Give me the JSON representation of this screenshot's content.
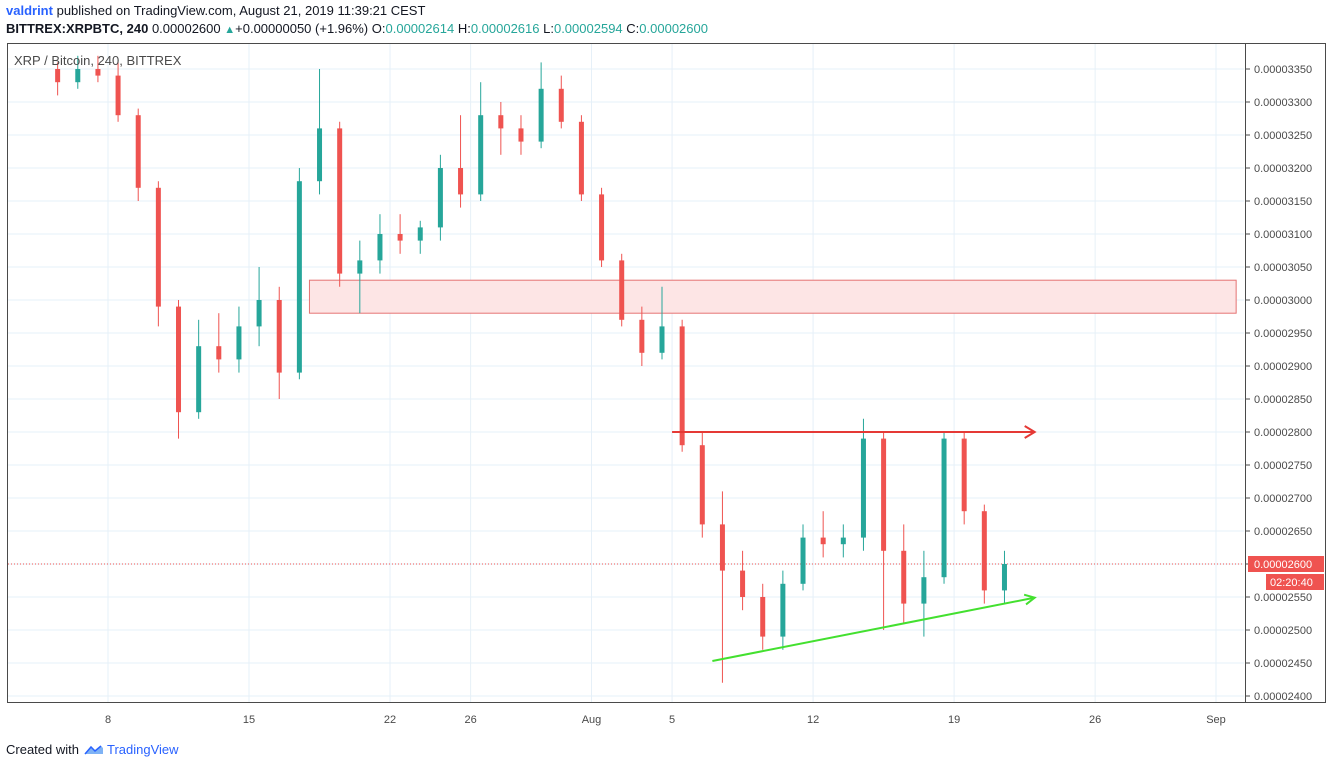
{
  "header": {
    "author": "valdrint",
    "published": "published on TradingView.com, August 21, 2019 11:39:21 CEST",
    "symbol": "BITTREX:XRPBTC, 240",
    "last": "0.00002600",
    "arrow": "▲",
    "change": "+0.00000050 (+1.96%)",
    "o_label": "O:",
    "o_value": "0.00002614",
    "h_label": "H:",
    "h_value": "0.00002616",
    "l_label": "L:",
    "l_value": "0.00002594",
    "c_label": "C:",
    "c_value": "0.00002600"
  },
  "watermark": "XRP / Bitcoin, 240, BITTREX",
  "footer": {
    "created_with": "Created with",
    "brand": "TradingView"
  },
  "chart_data": {
    "type": "candlestick",
    "symbol": "XRPBTC",
    "exchange": "BITTREX",
    "timeframe": "240",
    "x_tick_labels": [
      "8",
      "15",
      "22",
      "26",
      "Aug",
      "5",
      "12",
      "19",
      "26",
      "Sep"
    ],
    "x_tick_dates": [
      "2019-07-08",
      "2019-07-15",
      "2019-07-22",
      "2019-07-26",
      "2019-08-01",
      "2019-08-05",
      "2019-08-12",
      "2019-08-19",
      "2019-08-26",
      "2019-09-01"
    ],
    "y_tick_labels": [
      "0.00003350",
      "0.00003300",
      "0.00003250",
      "0.00003200",
      "0.00003150",
      "0.00003100",
      "0.00003050",
      "0.00003000",
      "0.00002950",
      "0.00002900",
      "0.00002850",
      "0.00002800",
      "0.00002750",
      "0.00002700",
      "0.00002650",
      "0.00002600",
      "0.00002550",
      "0.00002500",
      "0.00002450",
      "0.00002400"
    ],
    "ylim": [
      2.4e-05,
      3.37e-05
    ],
    "current_price": "0.00002600",
    "countdown": "02:20:40",
    "colors": {
      "up": "#26a69a",
      "down": "#ef5350",
      "grid": "#e6f0f8",
      "resistance_zone": "#fde5e5",
      "resistance_line": "#e53935",
      "support_line": "#43e02f",
      "price_line": "#ef5350"
    },
    "candles": [
      {
        "t": "2019-07-05",
        "o": 3.35e-05,
        "h": 3.36e-05,
        "l": 3.31e-05,
        "c": 3.33e-05
      },
      {
        "t": "2019-07-06",
        "o": 3.33e-05,
        "h": 3.37e-05,
        "l": 3.32e-05,
        "c": 3.35e-05
      },
      {
        "t": "2019-07-07",
        "o": 3.35e-05,
        "h": 3.37e-05,
        "l": 3.33e-05,
        "c": 3.34e-05
      },
      {
        "t": "2019-07-08",
        "o": 3.34e-05,
        "h": 3.36e-05,
        "l": 3.27e-05,
        "c": 3.28e-05
      },
      {
        "t": "2019-07-09",
        "o": 3.28e-05,
        "h": 3.29e-05,
        "l": 3.15e-05,
        "c": 3.17e-05
      },
      {
        "t": "2019-07-10",
        "o": 3.17e-05,
        "h": 3.18e-05,
        "l": 2.96e-05,
        "c": 2.99e-05
      },
      {
        "t": "2019-07-11",
        "o": 2.99e-05,
        "h": 3e-05,
        "l": 2.79e-05,
        "c": 2.83e-05
      },
      {
        "t": "2019-07-12",
        "o": 2.83e-05,
        "h": 2.97e-05,
        "l": 2.82e-05,
        "c": 2.93e-05
      },
      {
        "t": "2019-07-13",
        "o": 2.93e-05,
        "h": 2.98e-05,
        "l": 2.89e-05,
        "c": 2.91e-05
      },
      {
        "t": "2019-07-14",
        "o": 2.91e-05,
        "h": 2.99e-05,
        "l": 2.89e-05,
        "c": 2.96e-05
      },
      {
        "t": "2019-07-15",
        "o": 2.96e-05,
        "h": 3.05e-05,
        "l": 2.93e-05,
        "c": 3e-05
      },
      {
        "t": "2019-07-16",
        "o": 3e-05,
        "h": 3.02e-05,
        "l": 2.85e-05,
        "c": 2.89e-05
      },
      {
        "t": "2019-07-17",
        "o": 2.89e-05,
        "h": 3.2e-05,
        "l": 2.88e-05,
        "c": 3.18e-05
      },
      {
        "t": "2019-07-18",
        "o": 3.18e-05,
        "h": 3.35e-05,
        "l": 3.16e-05,
        "c": 3.26e-05
      },
      {
        "t": "2019-07-19",
        "o": 3.26e-05,
        "h": 3.27e-05,
        "l": 3.02e-05,
        "c": 3.04e-05
      },
      {
        "t": "2019-07-20",
        "o": 3.04e-05,
        "h": 3.09e-05,
        "l": 2.98e-05,
        "c": 3.06e-05
      },
      {
        "t": "2019-07-21",
        "o": 3.06e-05,
        "h": 3.13e-05,
        "l": 3.04e-05,
        "c": 3.1e-05
      },
      {
        "t": "2019-07-22",
        "o": 3.1e-05,
        "h": 3.13e-05,
        "l": 3.07e-05,
        "c": 3.09e-05
      },
      {
        "t": "2019-07-23",
        "o": 3.09e-05,
        "h": 3.12e-05,
        "l": 3.07e-05,
        "c": 3.11e-05
      },
      {
        "t": "2019-07-24",
        "o": 3.11e-05,
        "h": 3.22e-05,
        "l": 3.09e-05,
        "c": 3.2e-05
      },
      {
        "t": "2019-07-25",
        "o": 3.2e-05,
        "h": 3.28e-05,
        "l": 3.14e-05,
        "c": 3.16e-05
      },
      {
        "t": "2019-07-26",
        "o": 3.16e-05,
        "h": 3.33e-05,
        "l": 3.15e-05,
        "c": 3.28e-05
      },
      {
        "t": "2019-07-27",
        "o": 3.28e-05,
        "h": 3.3e-05,
        "l": 3.22e-05,
        "c": 3.26e-05
      },
      {
        "t": "2019-07-28",
        "o": 3.26e-05,
        "h": 3.28e-05,
        "l": 3.22e-05,
        "c": 3.24e-05
      },
      {
        "t": "2019-07-29",
        "o": 3.24e-05,
        "h": 3.36e-05,
        "l": 3.23e-05,
        "c": 3.32e-05
      },
      {
        "t": "2019-07-30",
        "o": 3.32e-05,
        "h": 3.34e-05,
        "l": 3.26e-05,
        "c": 3.27e-05
      },
      {
        "t": "2019-07-31",
        "o": 3.27e-05,
        "h": 3.28e-05,
        "l": 3.15e-05,
        "c": 3.16e-05
      },
      {
        "t": "2019-08-01",
        "o": 3.16e-05,
        "h": 3.17e-05,
        "l": 3.05e-05,
        "c": 3.06e-05
      },
      {
        "t": "2019-08-02",
        "o": 3.06e-05,
        "h": 3.07e-05,
        "l": 2.96e-05,
        "c": 2.97e-05
      },
      {
        "t": "2019-08-03",
        "o": 2.97e-05,
        "h": 2.99e-05,
        "l": 2.9e-05,
        "c": 2.92e-05
      },
      {
        "t": "2019-08-04",
        "o": 2.92e-05,
        "h": 3.02e-05,
        "l": 2.91e-05,
        "c": 2.96e-05
      },
      {
        "t": "2019-08-05",
        "o": 2.96e-05,
        "h": 2.97e-05,
        "l": 2.77e-05,
        "c": 2.78e-05
      },
      {
        "t": "2019-08-06",
        "o": 2.78e-05,
        "h": 2.8e-05,
        "l": 2.64e-05,
        "c": 2.66e-05
      },
      {
        "t": "2019-08-07",
        "o": 2.66e-05,
        "h": 2.71e-05,
        "l": 2.42e-05,
        "c": 2.59e-05
      },
      {
        "t": "2019-08-08",
        "o": 2.59e-05,
        "h": 2.62e-05,
        "l": 2.53e-05,
        "c": 2.55e-05
      },
      {
        "t": "2019-08-09",
        "o": 2.55e-05,
        "h": 2.57e-05,
        "l": 2.47e-05,
        "c": 2.49e-05
      },
      {
        "t": "2019-08-10",
        "o": 2.49e-05,
        "h": 2.59e-05,
        "l": 2.47e-05,
        "c": 2.57e-05
      },
      {
        "t": "2019-08-11",
        "o": 2.57e-05,
        "h": 2.66e-05,
        "l": 2.56e-05,
        "c": 2.64e-05
      },
      {
        "t": "2019-08-12",
        "o": 2.64e-05,
        "h": 2.68e-05,
        "l": 2.61e-05,
        "c": 2.63e-05
      },
      {
        "t": "2019-08-13",
        "o": 2.63e-05,
        "h": 2.66e-05,
        "l": 2.61e-05,
        "c": 2.64e-05
      },
      {
        "t": "2019-08-14",
        "o": 2.64e-05,
        "h": 2.82e-05,
        "l": 2.62e-05,
        "c": 2.79e-05
      },
      {
        "t": "2019-08-15",
        "o": 2.79e-05,
        "h": 2.8e-05,
        "l": 2.5e-05,
        "c": 2.62e-05
      },
      {
        "t": "2019-08-16",
        "o": 2.62e-05,
        "h": 2.66e-05,
        "l": 2.51e-05,
        "c": 2.54e-05
      },
      {
        "t": "2019-08-17",
        "o": 2.54e-05,
        "h": 2.62e-05,
        "l": 2.49e-05,
        "c": 2.58e-05
      },
      {
        "t": "2019-08-18",
        "o": 2.58e-05,
        "h": 2.8e-05,
        "l": 2.57e-05,
        "c": 2.79e-05
      },
      {
        "t": "2019-08-19",
        "o": 2.79e-05,
        "h": 2.8e-05,
        "l": 2.66e-05,
        "c": 2.68e-05
      },
      {
        "t": "2019-08-20",
        "o": 2.68e-05,
        "h": 2.69e-05,
        "l": 2.54e-05,
        "c": 2.56e-05
      },
      {
        "t": "2019-08-21",
        "o": 2.56e-05,
        "h": 2.62e-05,
        "l": 2.54e-05,
        "c": 2.6e-05
      }
    ],
    "drawings": {
      "resistance_zone": {
        "from": "2019-07-18",
        "to": "2019-09-02",
        "top": 3.03e-05,
        "bottom": 2.98e-05
      },
      "resistance_line": {
        "from": "2019-08-05",
        "to": "2019-08-23",
        "y": 2.8e-05
      },
      "support_line": {
        "from": "2019-08-07",
        "y1": 2.453e-05,
        "to": "2019-08-23",
        "y2": 2.549e-05
      }
    }
  }
}
